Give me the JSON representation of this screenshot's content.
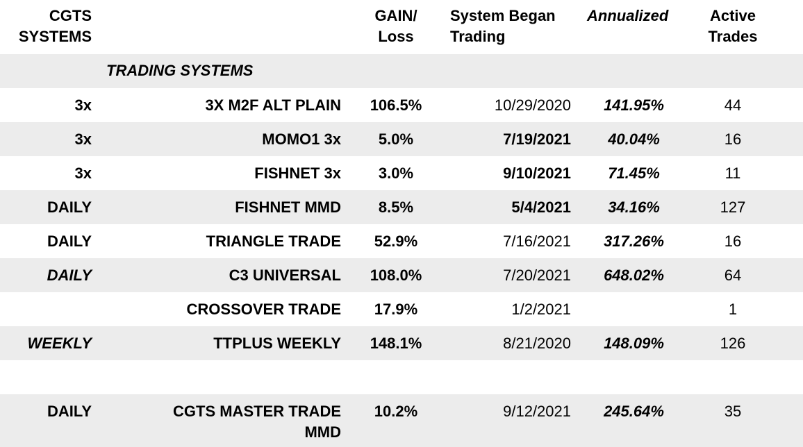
{
  "header": {
    "columns": [
      "CGTS SYSTEMS",
      "GAIN/ Loss",
      "System Began Trading",
      "Annualized",
      "Active Trades"
    ]
  },
  "section": "TRADING SYSTEMS",
  "rows": [
    {
      "frequency": "3x",
      "system": "3X M2F ALT PLAIN",
      "gain": "106.5%",
      "began": "10/29/2020",
      "annualized": "141.95%",
      "active": "44"
    },
    {
      "frequency": "3x",
      "system": "MOMO1 3x",
      "gain": "5.0%",
      "began": "7/19/2021",
      "annualized": "40.04%",
      "active": "16"
    },
    {
      "frequency": "3x",
      "system": "FISHNET 3x",
      "gain": "3.0%",
      "began": "9/10/2021",
      "annualized": "71.45%",
      "active": "11"
    },
    {
      "frequency": "DAILY",
      "system": "FISHNET MMD",
      "gain": "8.5%",
      "began": "5/4/2021",
      "annualized": "34.16%",
      "active": "127"
    },
    {
      "frequency": "DAILY",
      "system": "TRIANGLE TRADE",
      "gain": "52.9%",
      "began": "7/16/2021",
      "annualized": "317.26%",
      "active": "16"
    },
    {
      "frequency": "DAILY",
      "system": "C3 UNIVERSAL",
      "gain": "108.0%",
      "began": "7/20/2021",
      "annualized": "648.02%",
      "active": "64"
    },
    {
      "frequency": null,
      "system": "CROSSOVER TRADE",
      "gain": "17.9%",
      "began": "1/2/2021",
      "annualized": null,
      "active": "1"
    },
    {
      "frequency": "WEEKLY",
      "system": "TTPLUS WEEKLY",
      "gain": "148.1%",
      "began": "8/21/2020",
      "annualized": "148.09%",
      "active": "126"
    },
    {
      "frequency": "DAILY",
      "system": "CGTS MASTER TRADE MMD",
      "gain": "10.2%",
      "began": "9/12/2021",
      "annualized": "245.64%",
      "active": "35"
    }
  ]
}
